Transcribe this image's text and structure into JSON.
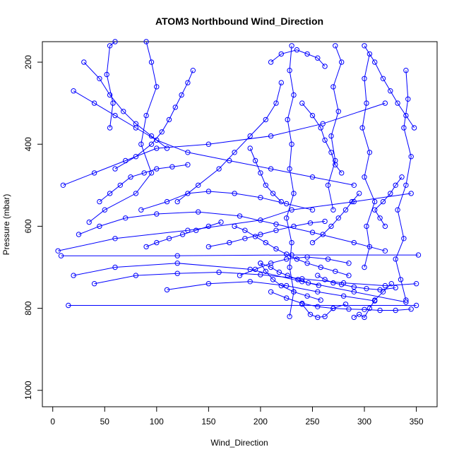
{
  "chart_data": {
    "type": "scatter",
    "title": "ATOM3 Northbound Wind_Direction",
    "xlabel": "Wind_Direction",
    "ylabel": "Pressure (mbar)",
    "xlim": [
      -10,
      370
    ],
    "ylim": [
      1040,
      150
    ],
    "y_reversed": true,
    "x_ticks": [
      "0",
      "50",
      "100",
      "150",
      "200",
      "250",
      "300",
      "350"
    ],
    "y_ticks": [
      "200",
      "400",
      "600",
      "800",
      "1000"
    ],
    "grid": false,
    "legend": "none",
    "point_marker": "open-circle",
    "line_connected": true,
    "color": "#0000ff",
    "series": [
      {
        "values": [
          [
            15,
            793
          ],
          [
            350,
            793
          ]
        ]
      },
      {
        "values": [
          [
            8,
            672
          ],
          [
            120,
            672
          ],
          [
            230,
            670
          ],
          [
            352,
            670
          ]
        ]
      },
      {
        "values": [
          [
            5,
            660
          ],
          [
            60,
            630
          ],
          [
            130,
            610
          ],
          [
            200,
            585
          ],
          [
            230,
            560
          ],
          [
            290,
            540
          ],
          [
            345,
            520
          ]
        ]
      },
      {
        "values": [
          [
            10,
            500
          ],
          [
            40,
            470
          ],
          [
            70,
            440
          ],
          [
            100,
            410
          ],
          [
            150,
            400
          ],
          [
            210,
            380
          ],
          [
            260,
            350
          ],
          [
            320,
            300
          ]
        ]
      },
      {
        "values": [
          [
            20,
            720
          ],
          [
            60,
            700
          ],
          [
            120,
            690
          ],
          [
            190,
            705
          ],
          [
            240,
            735
          ],
          [
            290,
            760
          ],
          [
            340,
            785
          ]
        ]
      },
      {
        "values": [
          [
            35,
            590
          ],
          [
            50,
            560
          ],
          [
            80,
            520
          ],
          [
            95,
            470
          ],
          [
            85,
            400
          ],
          [
            90,
            330
          ],
          [
            100,
            260
          ],
          [
            95,
            200
          ],
          [
            90,
            150
          ]
        ]
      },
      {
        "values": [
          [
            55,
            360
          ],
          [
            58,
            300
          ],
          [
            52,
            230
          ],
          [
            55,
            160
          ],
          [
            60,
            150
          ]
        ]
      },
      {
        "values": [
          [
            228,
            820
          ],
          [
            232,
            760
          ],
          [
            228,
            700
          ],
          [
            230,
            640
          ],
          [
            225,
            580
          ],
          [
            232,
            520
          ],
          [
            228,
            460
          ],
          [
            230,
            400
          ],
          [
            226,
            340
          ],
          [
            232,
            280
          ],
          [
            228,
            220
          ],
          [
            230,
            160
          ]
        ]
      },
      {
        "values": [
          [
            240,
            790
          ],
          [
            248,
            815
          ],
          [
            255,
            822
          ],
          [
            262,
            820
          ],
          [
            270,
            800
          ],
          [
            282,
            790
          ]
        ]
      },
      {
        "values": [
          [
            290,
            822
          ],
          [
            295,
            815
          ],
          [
            300,
            822
          ],
          [
            305,
            800
          ],
          [
            310,
            780
          ],
          [
            318,
            760
          ],
          [
            326,
            740
          ]
        ]
      },
      {
        "values": [
          [
            200,
            690
          ],
          [
            205,
            710
          ],
          [
            212,
            730
          ],
          [
            220,
            745
          ],
          [
            232,
            760
          ],
          [
            245,
            770
          ],
          [
            258,
            780
          ]
        ]
      },
      {
        "values": [
          [
            180,
            720
          ],
          [
            195,
            705
          ],
          [
            210,
            690
          ],
          [
            225,
            680
          ],
          [
            245,
            675
          ],
          [
            265,
            680
          ],
          [
            285,
            690
          ]
        ]
      },
      {
        "values": [
          [
            300,
            700
          ],
          [
            305,
            650
          ],
          [
            302,
            600
          ],
          [
            310,
            540
          ],
          [
            300,
            480
          ],
          [
            305,
            420
          ],
          [
            298,
            360
          ],
          [
            302,
            300
          ],
          [
            300,
            240
          ],
          [
            305,
            180
          ]
        ]
      },
      {
        "values": [
          [
            340,
            780
          ],
          [
            335,
            730
          ],
          [
            330,
            680
          ],
          [
            338,
            630
          ],
          [
            332,
            560
          ],
          [
            340,
            500
          ],
          [
            345,
            430
          ],
          [
            338,
            360
          ],
          [
            342,
            290
          ],
          [
            340,
            220
          ]
        ]
      },
      {
        "values": [
          [
            270,
            560
          ],
          [
            265,
            500
          ],
          [
            272,
            440
          ],
          [
            268,
            380
          ],
          [
            275,
            320
          ],
          [
            270,
            260
          ],
          [
            278,
            200
          ],
          [
            272,
            160
          ]
        ]
      },
      {
        "values": [
          [
            120,
            540
          ],
          [
            140,
            500
          ],
          [
            160,
            460
          ],
          [
            175,
            420
          ],
          [
            190,
            380
          ],
          [
            205,
            340
          ],
          [
            215,
            300
          ],
          [
            220,
            250
          ]
        ]
      },
      {
        "values": [
          [
            20,
            270
          ],
          [
            40,
            300
          ],
          [
            60,
            330
          ],
          [
            80,
            360
          ],
          [
            100,
            390
          ],
          [
            130,
            420
          ],
          [
            170,
            440
          ],
          [
            210,
            460
          ],
          [
            250,
            480
          ],
          [
            290,
            500
          ]
        ]
      },
      {
        "values": [
          [
            25,
            620
          ],
          [
            45,
            600
          ],
          [
            70,
            580
          ],
          [
            100,
            570
          ],
          [
            140,
            565
          ],
          [
            180,
            575
          ],
          [
            215,
            595
          ],
          [
            250,
            615
          ],
          [
            290,
            640
          ],
          [
            320,
            660
          ]
        ]
      },
      {
        "values": [
          [
            40,
            740
          ],
          [
            80,
            720
          ],
          [
            120,
            715
          ],
          [
            160,
            712
          ],
          [
            200,
            718
          ],
          [
            240,
            728
          ],
          [
            280,
            738
          ],
          [
            320,
            745
          ],
          [
            350,
            740
          ]
        ]
      },
      {
        "values": [
          [
            110,
            755
          ],
          [
            150,
            740
          ],
          [
            190,
            735
          ],
          [
            225,
            745
          ],
          [
            255,
            760
          ],
          [
            280,
            770
          ],
          [
            310,
            782
          ]
        ]
      },
      {
        "values": [
          [
            85,
            560
          ],
          [
            110,
            540
          ],
          [
            130,
            520
          ],
          [
            150,
            515
          ],
          [
            175,
            520
          ],
          [
            200,
            530
          ],
          [
            225,
            545
          ],
          [
            250,
            560
          ]
        ]
      },
      {
        "values": [
          [
            60,
            460
          ],
          [
            80,
            430
          ],
          [
            95,
            400
          ],
          [
            105,
            370
          ],
          [
            112,
            340
          ],
          [
            118,
            310
          ],
          [
            124,
            280
          ],
          [
            130,
            250
          ],
          [
            135,
            220
          ]
        ]
      },
      {
        "values": [
          [
            150,
            650
          ],
          [
            170,
            640
          ],
          [
            185,
            630
          ],
          [
            200,
            620
          ],
          [
            215,
            610
          ],
          [
            232,
            600
          ],
          [
            248,
            592
          ],
          [
            262,
            588
          ]
        ]
      },
      {
        "values": [
          [
            210,
            200
          ],
          [
            220,
            180
          ],
          [
            235,
            170
          ],
          [
            245,
            180
          ],
          [
            255,
            190
          ],
          [
            262,
            210
          ]
        ]
      },
      {
        "values": [
          [
            320,
            600
          ],
          [
            315,
            580
          ],
          [
            310,
            560
          ],
          [
            318,
            540
          ],
          [
            325,
            520
          ],
          [
            330,
            500
          ],
          [
            336,
            480
          ]
        ]
      },
      {
        "values": [
          [
            45,
            540
          ],
          [
            55,
            520
          ],
          [
            65,
            500
          ],
          [
            75,
            480
          ],
          [
            88,
            470
          ],
          [
            100,
            460
          ],
          [
            115,
            455
          ],
          [
            130,
            450
          ]
        ]
      },
      {
        "values": [
          [
            175,
            600
          ],
          [
            185,
            610
          ],
          [
            195,
            625
          ],
          [
            205,
            640
          ],
          [
            215,
            655
          ],
          [
            225,
            668
          ],
          [
            235,
            680
          ],
          [
            245,
            690
          ],
          [
            258,
            700
          ],
          [
            272,
            710
          ],
          [
            285,
            720
          ]
        ]
      },
      {
        "values": [
          [
            250,
            640
          ],
          [
            260,
            620
          ],
          [
            268,
            600
          ],
          [
            275,
            580
          ],
          [
            282,
            560
          ],
          [
            288,
            540
          ],
          [
            295,
            520
          ]
        ]
      },
      {
        "values": [
          [
            240,
            300
          ],
          [
            250,
            330
          ],
          [
            258,
            360
          ],
          [
            262,
            390
          ],
          [
            268,
            420
          ],
          [
            272,
            450
          ],
          [
            278,
            470
          ]
        ]
      },
      {
        "values": [
          [
            190,
            410
          ],
          [
            195,
            440
          ],
          [
            200,
            470
          ],
          [
            205,
            500
          ],
          [
            212,
            520
          ],
          [
            220,
            540
          ]
        ]
      },
      {
        "values": [
          [
            300,
            160
          ],
          [
            310,
            200
          ],
          [
            318,
            240
          ],
          [
            325,
            270
          ],
          [
            332,
            300
          ],
          [
            340,
            330
          ],
          [
            348,
            360
          ]
        ]
      },
      {
        "values": [
          [
            30,
            200
          ],
          [
            45,
            240
          ],
          [
            55,
            280
          ],
          [
            68,
            320
          ],
          [
            80,
            350
          ],
          [
            95,
            380
          ],
          [
            110,
            410
          ]
        ]
      },
      {
        "values": [
          [
            90,
            650
          ],
          [
            100,
            640
          ],
          [
            112,
            630
          ],
          [
            125,
            620
          ],
          [
            138,
            610
          ],
          [
            150,
            600
          ],
          [
            162,
            590
          ]
        ]
      },
      {
        "values": [
          [
            210,
            760
          ],
          [
            225,
            775
          ],
          [
            240,
            788
          ],
          [
            255,
            796
          ],
          [
            270,
            800
          ],
          [
            285,
            802
          ],
          [
            300,
            803
          ],
          [
            315,
            805
          ],
          [
            330,
            805
          ],
          [
            345,
            802
          ]
        ]
      },
      {
        "values": [
          [
            255,
            720
          ],
          [
            262,
            730
          ],
          [
            270,
            738
          ],
          [
            278,
            742
          ],
          [
            290,
            748
          ],
          [
            302,
            752
          ],
          [
            315,
            755
          ],
          [
            330,
            750
          ]
        ]
      },
      {
        "values": [
          [
            200,
            690
          ],
          [
            210,
            700
          ],
          [
            218,
            712
          ],
          [
            226,
            720
          ],
          [
            236,
            730
          ],
          [
            246,
            738
          ],
          [
            256,
            744
          ]
        ]
      }
    ]
  }
}
